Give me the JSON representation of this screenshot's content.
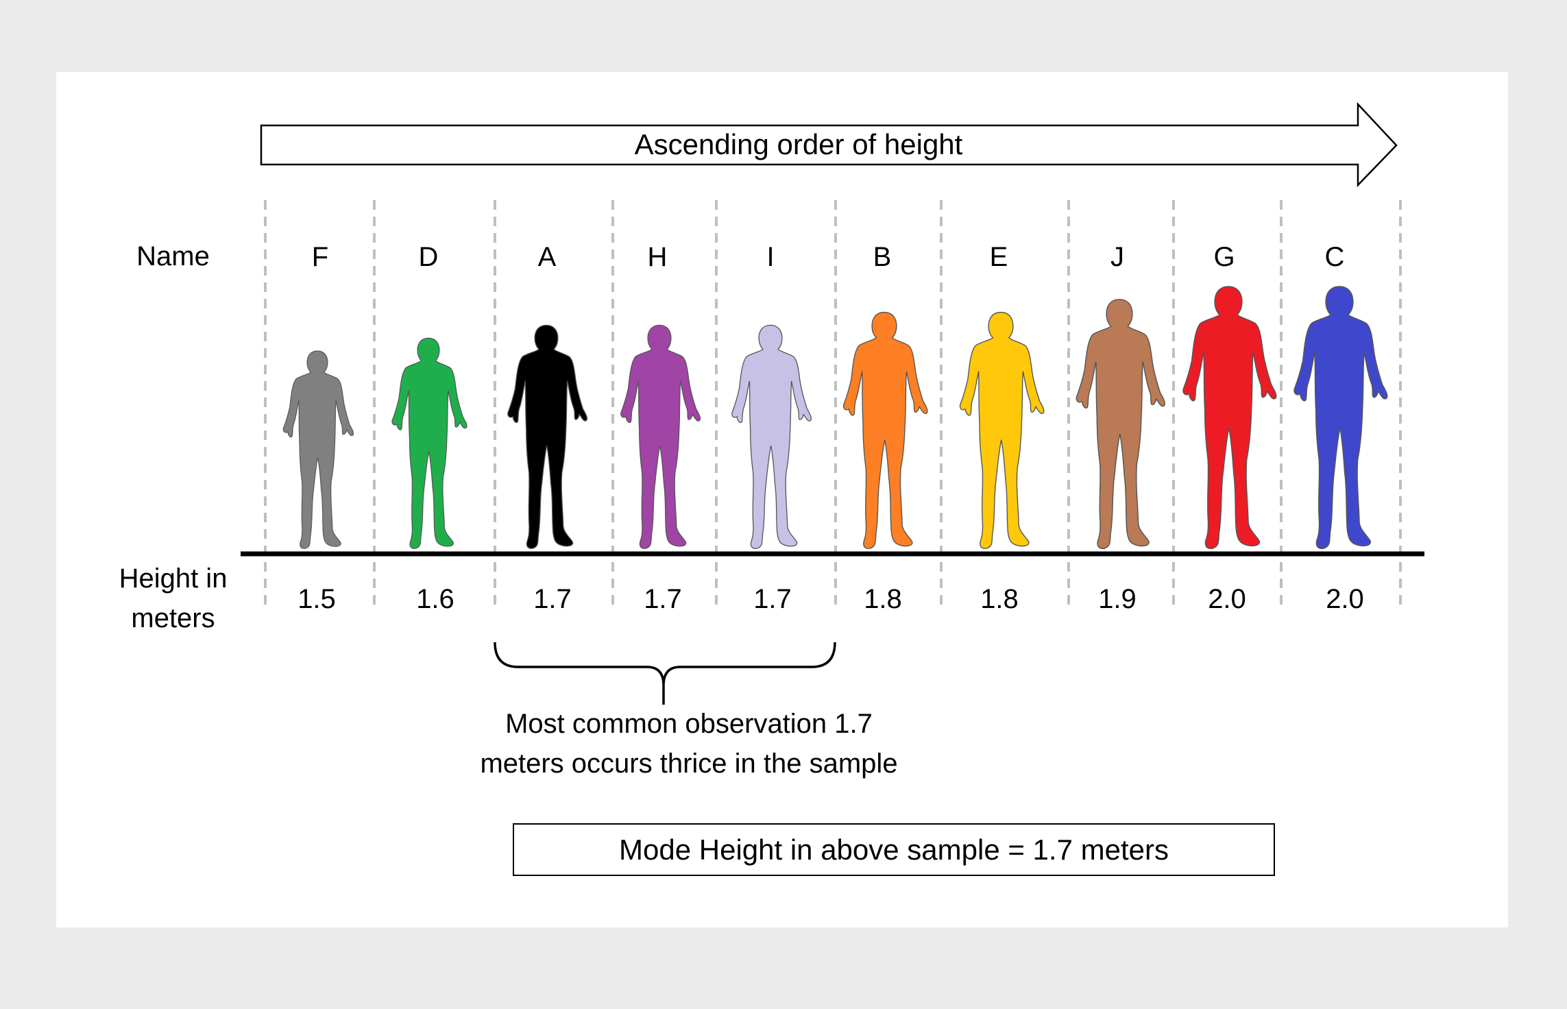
{
  "arrow_label": "Ascending order of height",
  "name_row_label": "Name",
  "height_row_label_line1": "Height in",
  "height_row_label_line2": "meters",
  "annotation_line1": "Most common observation 1.7",
  "annotation_line2": "meters occurs thrice in the sample",
  "mode_box_text": "Mode Height in above sample = 1.7 meters",
  "people": [
    {
      "name": "F",
      "height_label": "1.5",
      "height_m": 1.5,
      "color": "#808080"
    },
    {
      "name": "D",
      "height_label": "1.6",
      "height_m": 1.6,
      "color": "#1fae4b"
    },
    {
      "name": "A",
      "height_label": "1.7",
      "height_m": 1.7,
      "color": "#000000"
    },
    {
      "name": "H",
      "height_label": "1.7",
      "height_m": 1.7,
      "color": "#a044a6"
    },
    {
      "name": "I",
      "height_label": "1.7",
      "height_m": 1.7,
      "color": "#c7c1e6"
    },
    {
      "name": "B",
      "height_label": "1.8",
      "height_m": 1.8,
      "color": "#ff7f24"
    },
    {
      "name": "E",
      "height_label": "1.8",
      "height_m": 1.8,
      "color": "#ffc80a"
    },
    {
      "name": "J",
      "height_label": "1.9",
      "height_m": 1.9,
      "color": "#b97a55"
    },
    {
      "name": "G",
      "height_label": "2.0",
      "height_m": 2.0,
      "color": "#ed1c24"
    },
    {
      "name": "C",
      "height_label": "2.0",
      "height_m": 2.0,
      "color": "#3f48cc"
    }
  ],
  "mode_group": [
    "A",
    "H",
    "I"
  ],
  "colors": {
    "background": "#ebebeb",
    "card": "#ffffff",
    "divider": "#bfbfbf",
    "baseline": "#000000"
  }
}
